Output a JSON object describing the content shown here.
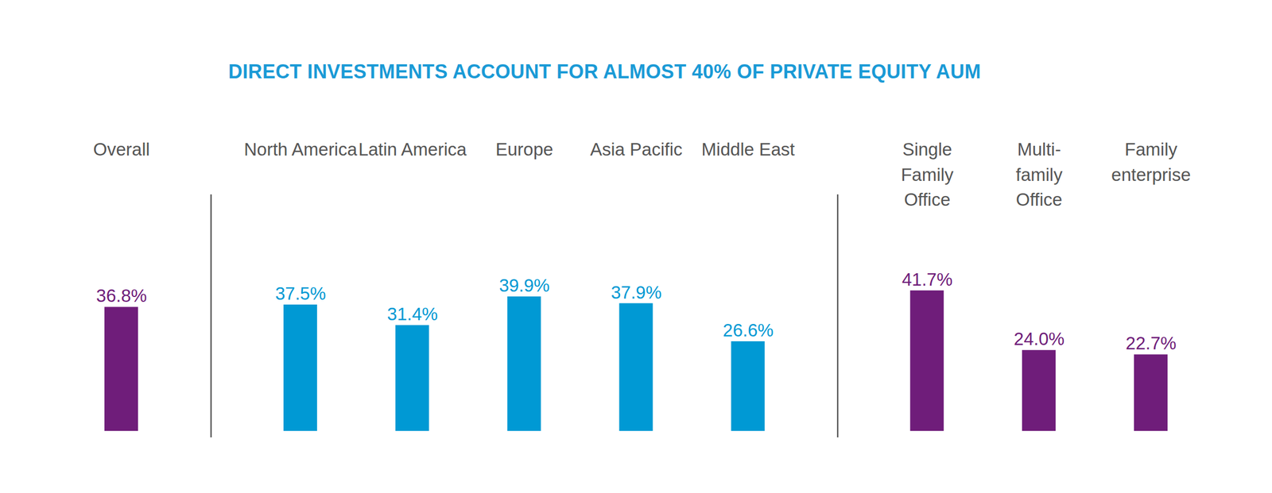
{
  "chart_data": {
    "type": "bar",
    "title": "DIRECT INVESTMENTS ACCOUNT FOR ALMOST 40% OF PRIVATE EQUITY AUM",
    "categories": [
      "Overall",
      "North America",
      "Latin America",
      "Europe",
      "Asia Pacific",
      "Middle East",
      "Single Family Office",
      "Multi-family Office",
      "Family enterprise"
    ],
    "values": [
      36.8,
      37.5,
      31.4,
      39.9,
      37.9,
      26.6,
      41.7,
      24.0,
      22.7
    ],
    "value_labels": [
      "36.8%",
      "37.5%",
      "31.4%",
      "39.9%",
      "37.9%",
      "26.6%",
      "41.7%",
      "24.0%",
      "22.7%"
    ],
    "colors": [
      "#6f1d7a",
      "#0099d4",
      "#0099d4",
      "#0099d4",
      "#0099d4",
      "#0099d4",
      "#6f1d7a",
      "#6f1d7a",
      "#6f1d7a"
    ],
    "ylim": [
      0,
      50
    ],
    "data_labels": true,
    "tick_labels": "x",
    "grid": false
  }
}
